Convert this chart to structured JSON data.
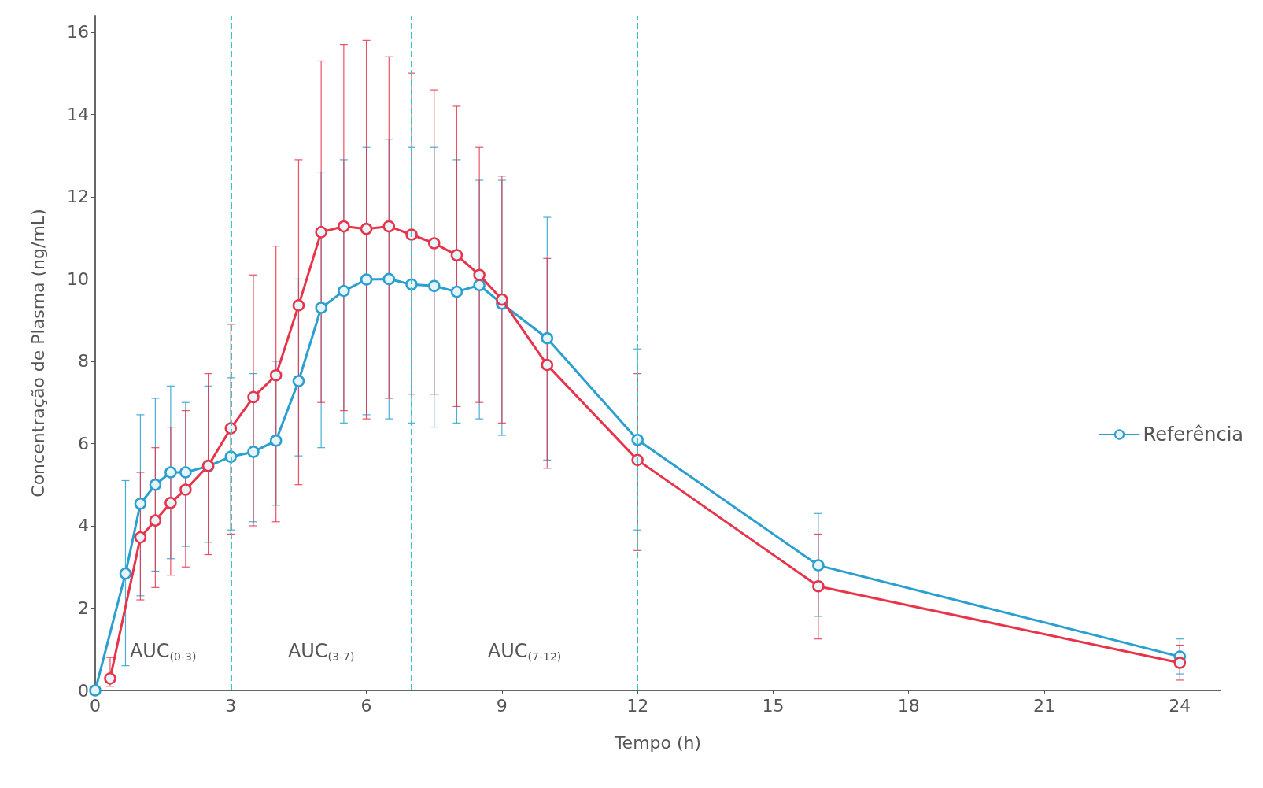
{
  "chart_data": {
    "type": "line",
    "xlabel": "Tempo (h)",
    "ylabel": "Concentração de Plasma (ng/mL)",
    "xlim": [
      0,
      24.9
    ],
    "xticks": [
      0,
      3,
      6,
      9,
      12,
      15,
      18,
      21,
      24
    ],
    "ylim": [
      0,
      16.4
    ],
    "yticks": [
      0,
      2,
      4,
      6,
      8,
      10,
      12,
      14,
      16
    ],
    "grid": false,
    "legend": "right",
    "marker": "circle",
    "line_style": "solid",
    "series": [
      {
        "name": "Referência",
        "color": "#2a9fd0",
        "x": [
          0,
          0.67,
          1,
          1.33,
          1.67,
          2,
          2.5,
          3,
          3.5,
          4,
          4.5,
          5,
          5.5,
          6,
          6.5,
          7,
          7.5,
          8,
          8.5,
          9,
          10,
          12,
          16,
          24
        ],
        "values": [
          0,
          2.84,
          4.54,
          5.0,
          5.3,
          5.3,
          5.45,
          5.68,
          5.8,
          6.07,
          7.52,
          9.3,
          9.71,
          9.99,
          10.0,
          9.87,
          9.83,
          9.69,
          9.85,
          9.4,
          8.56,
          6.09,
          3.04,
          0.82
        ],
        "errors": [
          null,
          [
            0.6,
            5.1
          ],
          [
            2.3,
            6.7
          ],
          [
            2.9,
            7.1
          ],
          [
            3.2,
            7.4
          ],
          [
            3.5,
            7.0
          ],
          [
            3.6,
            7.4
          ],
          [
            3.9,
            7.6
          ],
          [
            4.1,
            7.7
          ],
          [
            4.5,
            8.0
          ],
          [
            5.7,
            10.0
          ],
          [
            5.9,
            12.6
          ],
          [
            6.5,
            12.9
          ],
          [
            6.7,
            13.2
          ],
          [
            6.6,
            13.4
          ],
          [
            6.5,
            13.2
          ],
          [
            6.4,
            13.2
          ],
          [
            6.5,
            12.9
          ],
          [
            6.6,
            12.4
          ],
          [
            6.2,
            12.4
          ],
          [
            5.6,
            11.5
          ],
          [
            3.9,
            8.3
          ],
          [
            1.8,
            4.3
          ],
          [
            0.4,
            1.25
          ]
        ]
      },
      {
        "color": "#e8344a",
        "x": [
          0.33,
          1,
          1.33,
          1.67,
          2,
          2.5,
          3,
          3.5,
          4,
          4.5,
          5,
          5.5,
          6,
          6.5,
          7,
          7.5,
          8,
          8.5,
          9,
          10,
          12,
          16,
          24
        ],
        "values": [
          0.29,
          3.72,
          4.13,
          4.56,
          4.88,
          5.46,
          6.37,
          7.13,
          7.66,
          9.36,
          11.14,
          11.28,
          11.22,
          11.28,
          11.08,
          10.87,
          10.58,
          10.1,
          9.5,
          7.91,
          5.6,
          2.53,
          0.67
        ],
        "errors": [
          [
            0.1,
            0.8
          ],
          [
            2.2,
            5.3
          ],
          [
            2.5,
            5.9
          ],
          [
            2.8,
            6.4
          ],
          [
            3.0,
            6.8
          ],
          [
            3.3,
            7.7
          ],
          [
            3.8,
            8.9
          ],
          [
            4.0,
            10.1
          ],
          [
            4.1,
            10.8
          ],
          [
            5.0,
            12.9
          ],
          [
            7.0,
            15.3
          ],
          [
            6.8,
            15.7
          ],
          [
            6.6,
            15.8
          ],
          [
            7.1,
            15.4
          ],
          [
            7.2,
            15.0
          ],
          [
            7.2,
            14.6
          ],
          [
            6.9,
            14.2
          ],
          [
            7.0,
            13.2
          ],
          [
            6.5,
            12.5
          ],
          [
            5.4,
            10.5
          ],
          [
            3.4,
            7.7
          ],
          [
            1.25,
            3.8
          ],
          [
            0.25,
            1.1
          ]
        ]
      }
    ],
    "ref_lines": [
      {
        "axis": "x",
        "value": 3,
        "color": "#3cc4c0",
        "line_style": "dashed"
      },
      {
        "axis": "x",
        "value": 7,
        "color": "#3cc4c0",
        "line_style": "dashed"
      },
      {
        "axis": "x",
        "value": 12,
        "color": "#3cc4c0",
        "line_style": "dashed"
      }
    ],
    "annotations": [
      "AUC$_{(0-3)}$",
      "AUC$_{(3-7)}$",
      "AUC$_{(7-12)}$"
    ]
  }
}
